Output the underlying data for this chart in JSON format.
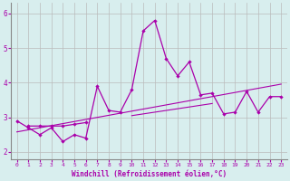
{
  "xlabel": "Windchill (Refroidissement éolien,°C)",
  "x": [
    0,
    1,
    2,
    3,
    4,
    5,
    6,
    7,
    8,
    9,
    10,
    11,
    12,
    13,
    14,
    15,
    16,
    17,
    18,
    19,
    20,
    21,
    22,
    23
  ],
  "line_main": [
    2.9,
    2.7,
    2.5,
    2.7,
    2.3,
    2.5,
    2.4,
    3.9,
    3.2,
    3.15,
    3.8,
    5.5,
    5.8,
    4.7,
    4.2,
    4.6,
    3.65,
    3.7,
    3.1,
    3.15,
    3.75,
    3.15,
    3.6,
    3.6
  ],
  "line_short": [
    null,
    2.75,
    2.75,
    2.75,
    2.75,
    2.8,
    2.85,
    null,
    null,
    null,
    null,
    null,
    null,
    null,
    null,
    null,
    null,
    null,
    null,
    null,
    null,
    null,
    null,
    null
  ],
  "trend_full": [
    2.58,
    2.64,
    2.7,
    2.76,
    2.82,
    2.88,
    2.94,
    3.0,
    3.06,
    3.12,
    3.18,
    3.24,
    3.3,
    3.36,
    3.42,
    3.48,
    3.54,
    3.6,
    3.66,
    3.72,
    3.78,
    3.84,
    3.9,
    3.96
  ],
  "trend_short": [
    null,
    null,
    null,
    null,
    null,
    null,
    null,
    null,
    null,
    null,
    3.05,
    3.1,
    3.15,
    3.2,
    3.25,
    3.3,
    3.35,
    3.4,
    null,
    null,
    null,
    null,
    null,
    null
  ],
  "bg_color": "#d8eeee",
  "line_color": "#aa00aa",
  "grid_color": "#bbbbbb",
  "ylim": [
    1.8,
    6.3
  ],
  "xlim": [
    -0.5,
    23.5
  ],
  "yticks": [
    2,
    3,
    4,
    5,
    6
  ],
  "xticks": [
    0,
    1,
    2,
    3,
    4,
    5,
    6,
    7,
    8,
    9,
    10,
    11,
    12,
    13,
    14,
    15,
    16,
    17,
    18,
    19,
    20,
    21,
    22,
    23
  ]
}
